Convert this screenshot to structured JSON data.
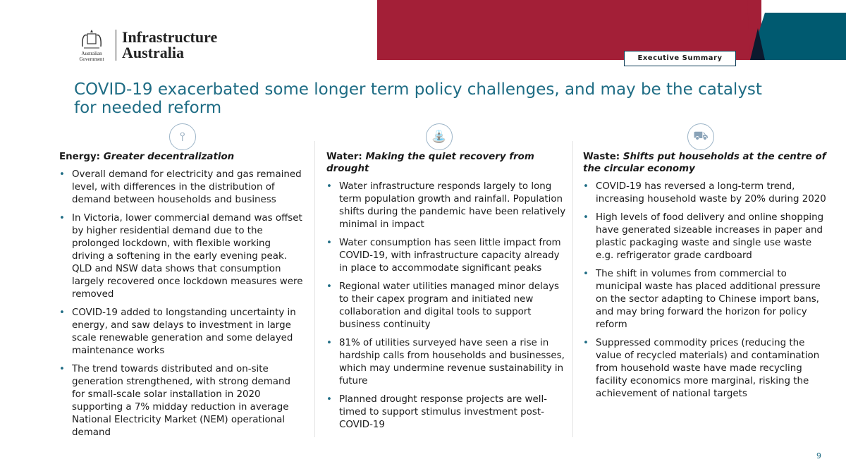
{
  "header": {
    "government_label": "Australian Government",
    "org_name_line1": "Infrastructure",
    "org_name_line2": "Australia",
    "section_tag": "Executive Summary",
    "colors": {
      "red": "#A31F37",
      "teal": "#005A70",
      "navy": "#0B1A2E",
      "title": "#1E6C84"
    }
  },
  "title": "COVID-19 exacerbated some longer term policy challenges, and may be the catalyst for needed reform",
  "columns": [
    {
      "icon": "wind-turbine-icon",
      "heading_prefix": "Energy:",
      "heading_italic": "Greater decentralization",
      "bullets": [
        "Overall demand for electricity and gas remained level, with differences in the distribution of demand between households and business",
        "In Victoria, lower commercial demand was offset by higher residential demand due to the prolonged lockdown, with flexible working driving a softening in the early evening peak. QLD and NSW data shows that consumption largely recovered once lockdown measures were removed",
        "COVID-19 added to longstanding uncertainty in energy, and saw delays to investment in large scale renewable generation and some delayed maintenance works",
        "The trend towards distributed and on-site generation strengthened, with strong demand for small-scale solar installation in 2020 supporting a 7% midday reduction in average National Electricity Market (NEM) operational demand"
      ]
    },
    {
      "icon": "water-tap-icon",
      "heading_prefix": "Water:",
      "heading_italic": "Making the quiet recovery from drought",
      "bullets": [
        "Water infrastructure responds largely to long term population growth and rainfall. Population shifts during the pandemic have been relatively minimal in impact",
        "Water consumption has seen little impact from COVID-19, with infrastructure capacity already in place to accommodate significant peaks",
        "Regional water utilities managed minor delays to their capex program and initiated new collaboration and digital tools to support business continuity",
        "81% of utilities surveyed have seen a rise in hardship calls from households and businesses, which may undermine revenue sustainability in future",
        "Planned drought response projects are well-timed to support stimulus investment post-COVID-19"
      ]
    },
    {
      "icon": "garbage-truck-icon",
      "heading_prefix": "Waste:",
      "heading_italic": "Shifts put households at the centre of the circular economy",
      "bullets": [
        "COVID-19 has reversed a long-term trend, increasing household waste by 20% during 2020",
        "High levels of food delivery and online shopping have generated sizeable increases in paper and plastic packaging waste and single use waste e.g. refrigerator grade cardboard",
        "The shift in volumes from commercial to municipal waste has placed additional pressure on the sector adapting to Chinese import bans, and may bring forward the horizon for policy reform",
        "Suppressed commodity prices (reducing the value of recycled materials) and contamination from household waste have made recycling facility economics more marginal, risking the achievement of national targets"
      ]
    }
  ],
  "page_number": "9"
}
